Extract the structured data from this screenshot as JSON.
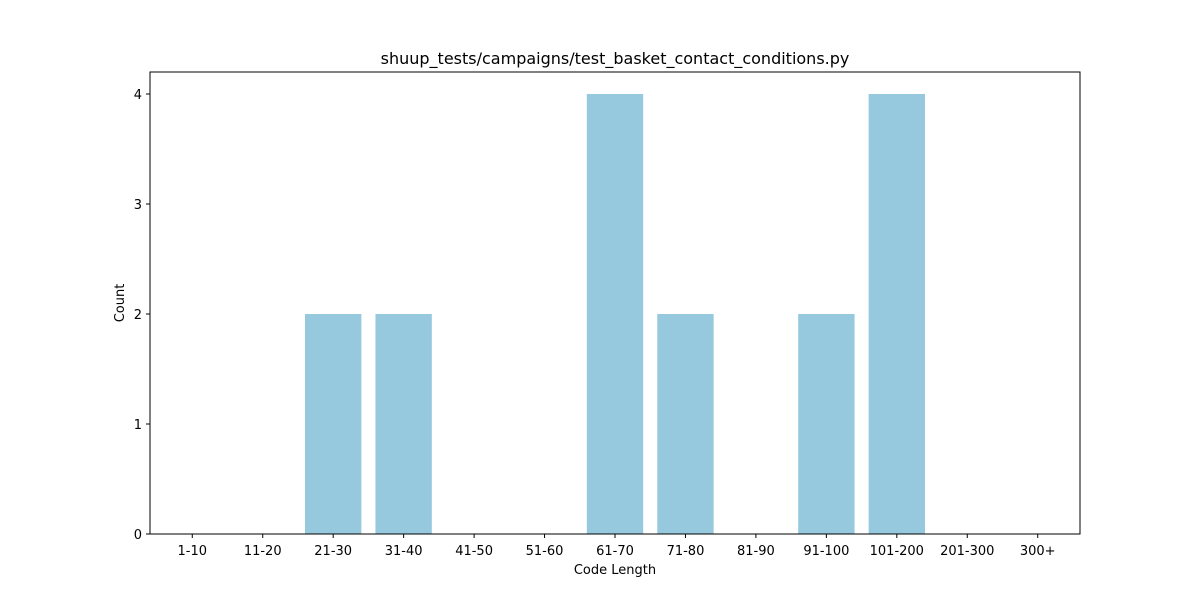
{
  "chart_data": {
    "type": "bar",
    "title": "shuup_tests/campaigns/test_basket_contact_conditions.py",
    "xlabel": "Code Length",
    "ylabel": "Count",
    "categories": [
      "1-10",
      "11-20",
      "21-30",
      "31-40",
      "41-50",
      "51-60",
      "61-70",
      "71-80",
      "81-90",
      "91-100",
      "101-200",
      "201-300",
      "300+"
    ],
    "values": [
      0,
      0,
      2,
      2,
      0,
      0,
      4,
      2,
      0,
      2,
      4,
      0,
      0
    ],
    "ylim": [
      0,
      4.2
    ],
    "yticks": [
      "0",
      "1",
      "2",
      "3",
      "4"
    ],
    "bar_color": "#96c9dd",
    "grid": false,
    "legend": "none"
  }
}
